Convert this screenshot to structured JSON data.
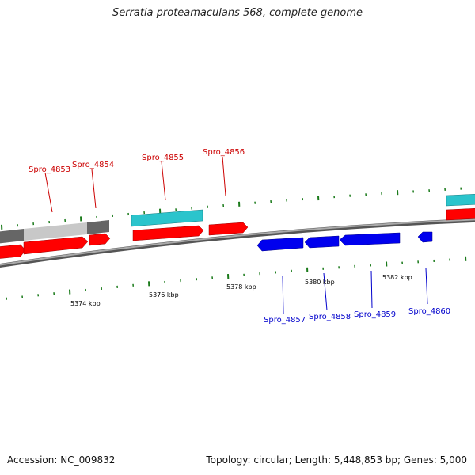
{
  "header": {
    "title": "Serratia proteamaculans 568, complete genome"
  },
  "footer": {
    "accession": "Accession: NC_009832",
    "summary": "Topology: circular; Length: 5,448,853 bp; Genes: 5,000"
  },
  "forward_genes": [
    {
      "label": "Spro_4853"
    },
    {
      "label": "Spro_4854"
    },
    {
      "label": "Spro_4855"
    },
    {
      "label": "Spro_4856"
    }
  ],
  "reverse_genes": [
    {
      "label": "Spro_4857"
    },
    {
      "label": "Spro_4858"
    },
    {
      "label": "Spro_4859"
    },
    {
      "label": "Spro_4860"
    }
  ],
  "scale_labels": [
    "5374 kbp",
    "5376 kbp",
    "5378 kbp",
    "5380 kbp",
    "5382 kbp"
  ],
  "colors": {
    "forward": "#ff0000",
    "reverse": "#0000ee",
    "rna": "#2bc4cc",
    "contig_dark": "#666666",
    "contig_light": "#c8c8c8",
    "backbone": "#888888",
    "tick": "#1a7a1a"
  }
}
